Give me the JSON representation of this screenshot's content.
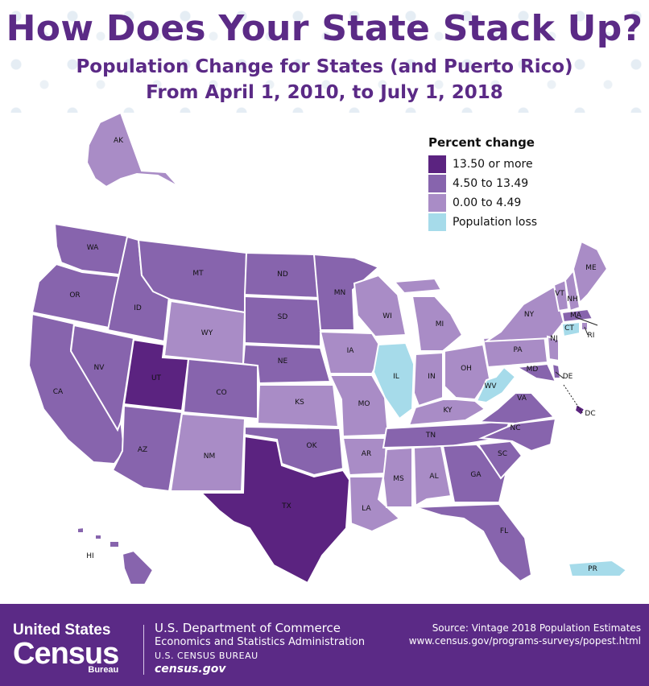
{
  "header": {
    "title": "How Does Your State Stack Up?",
    "subtitle_line1": "Population Change for States (and Puerto Rico)",
    "subtitle_line2": "From April 1, 2010, to July 1, 2018"
  },
  "legend": {
    "title": "Percent change",
    "items": [
      {
        "label": "13.50 or more",
        "color": "#5b2380"
      },
      {
        "label": "4.50 to 13.49",
        "color": "#8764ad"
      },
      {
        "label": "0.00 to 4.49",
        "color": "#a98cc6"
      },
      {
        "label": "Population loss",
        "color": "#a6dbea"
      }
    ]
  },
  "states": [
    {
      "abbr": "AK",
      "category": 2
    },
    {
      "abbr": "HI",
      "category": 1
    },
    {
      "abbr": "WA",
      "category": 1
    },
    {
      "abbr": "OR",
      "category": 1
    },
    {
      "abbr": "CA",
      "category": 1
    },
    {
      "abbr": "NV",
      "category": 1
    },
    {
      "abbr": "ID",
      "category": 1
    },
    {
      "abbr": "MT",
      "category": 1
    },
    {
      "abbr": "WY",
      "category": 2
    },
    {
      "abbr": "UT",
      "category": 0
    },
    {
      "abbr": "AZ",
      "category": 1
    },
    {
      "abbr": "NM",
      "category": 2
    },
    {
      "abbr": "CO",
      "category": 1
    },
    {
      "abbr": "ND",
      "category": 1
    },
    {
      "abbr": "SD",
      "category": 1
    },
    {
      "abbr": "NE",
      "category": 1
    },
    {
      "abbr": "KS",
      "category": 2
    },
    {
      "abbr": "OK",
      "category": 1
    },
    {
      "abbr": "TX",
      "category": 0
    },
    {
      "abbr": "MN",
      "category": 1
    },
    {
      "abbr": "IA",
      "category": 2
    },
    {
      "abbr": "MO",
      "category": 2
    },
    {
      "abbr": "AR",
      "category": 2
    },
    {
      "abbr": "LA",
      "category": 2
    },
    {
      "abbr": "WI",
      "category": 2
    },
    {
      "abbr": "IL",
      "category": 3
    },
    {
      "abbr": "MI",
      "category": 2
    },
    {
      "abbr": "IN",
      "category": 2
    },
    {
      "abbr": "OH",
      "category": 2
    },
    {
      "abbr": "KY",
      "category": 2
    },
    {
      "abbr": "TN",
      "category": 1
    },
    {
      "abbr": "MS",
      "category": 2
    },
    {
      "abbr": "AL",
      "category": 2
    },
    {
      "abbr": "GA",
      "category": 1
    },
    {
      "abbr": "FL",
      "category": 1
    },
    {
      "abbr": "SC",
      "category": 1
    },
    {
      "abbr": "NC",
      "category": 1
    },
    {
      "abbr": "VA",
      "category": 1
    },
    {
      "abbr": "WV",
      "category": 3
    },
    {
      "abbr": "PA",
      "category": 2
    },
    {
      "abbr": "NY",
      "category": 2
    },
    {
      "abbr": "VT",
      "category": 2
    },
    {
      "abbr": "NH",
      "category": 2
    },
    {
      "abbr": "ME",
      "category": 2
    },
    {
      "abbr": "MA",
      "category": 1
    },
    {
      "abbr": "RI",
      "category": 2
    },
    {
      "abbr": "CT",
      "category": 3
    },
    {
      "abbr": "NJ",
      "category": 2
    },
    {
      "abbr": "DE",
      "category": 1
    },
    {
      "abbr": "MD",
      "category": 1
    },
    {
      "abbr": "DC",
      "category": 0
    },
    {
      "abbr": "PR",
      "category": 3
    }
  ],
  "footer": {
    "logo_line1": "United States",
    "logo_line2": "Census",
    "logo_line3": "Bureau",
    "dept_line1": "U.S. Department of Commerce",
    "dept_line2": "Economics and Statistics Administration",
    "dept_line3": "U.S. CENSUS BUREAU",
    "dept_line4": "census.gov",
    "source_line1": "Source: Vintage 2018 Population Estimates",
    "source_line2": "www.census.gov/programs-surveys/popest.html"
  }
}
